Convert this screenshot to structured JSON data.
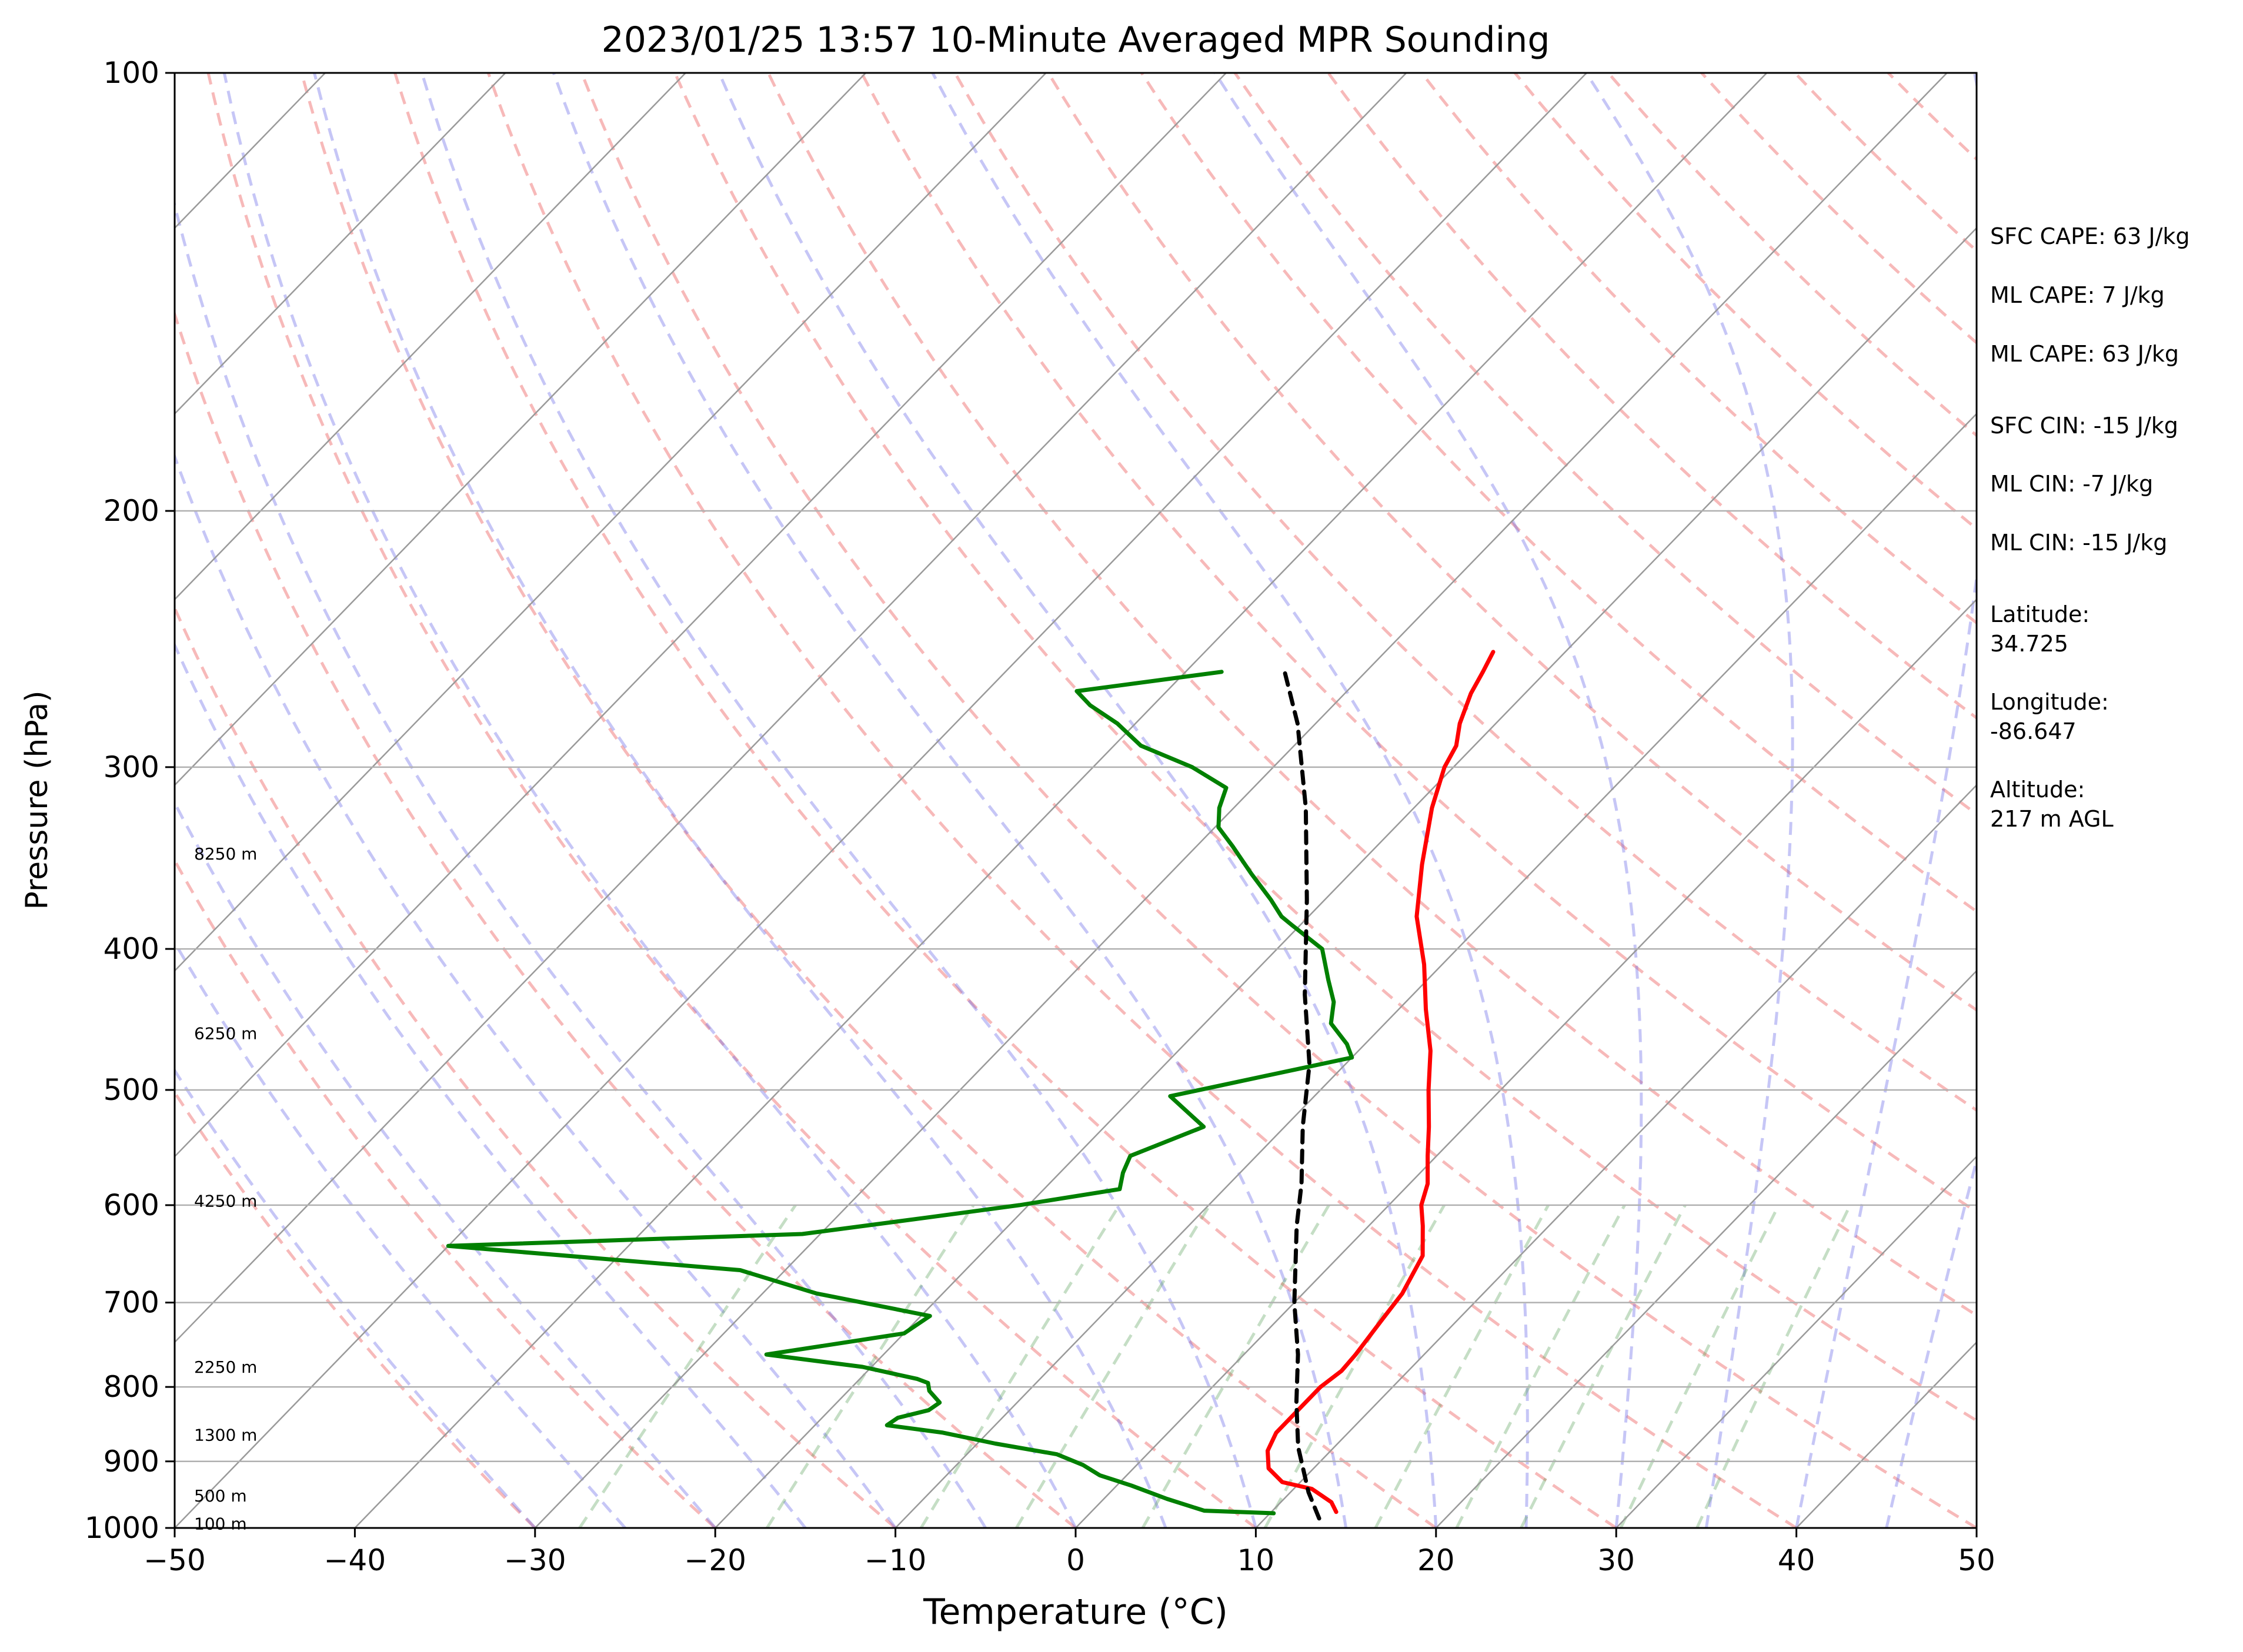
{
  "chart_data": {
    "type": "line",
    "title": "2023/01/25 13:57 10-Minute Averaged MPR Sounding",
    "xlabel": "Temperature (°C)",
    "ylabel": "Pressure (hPa)",
    "xlim": [
      -50,
      50
    ],
    "ylim": [
      1000,
      100
    ],
    "y_scale": "log",
    "skew_t": true,
    "x_ticks": [
      -50,
      -40,
      -30,
      -20,
      -10,
      0,
      10,
      20,
      30,
      40,
      50
    ],
    "x_tick_labels": [
      "−50",
      "−40",
      "−30",
      "−20",
      "−10",
      "0",
      "10",
      "20",
      "30",
      "40",
      "50"
    ],
    "y_ticks": [
      1000,
      900,
      800,
      700,
      600,
      500,
      400,
      300,
      200,
      100
    ],
    "y_tick_labels": [
      "1000",
      "900",
      "800",
      "700",
      "600",
      "500",
      "400",
      "300",
      "200",
      "100"
    ],
    "grid": true,
    "series": [
      {
        "color": "#ff0000",
        "points": [
          [
            13.6,
            975
          ],
          [
            12.8,
            960
          ],
          [
            11.0,
            940
          ],
          [
            9.0,
            930
          ],
          [
            7.5,
            910
          ],
          [
            6.5,
            885
          ],
          [
            6.0,
            860
          ],
          [
            6.0,
            830
          ],
          [
            6.0,
            800
          ],
          [
            6.3,
            780
          ],
          [
            6.2,
            760
          ],
          [
            5.8,
            720
          ],
          [
            5.5,
            690
          ],
          [
            4.6,
            650
          ],
          [
            3.0,
            620
          ],
          [
            1.8,
            600
          ],
          [
            1.0,
            580
          ],
          [
            -0.5,
            555
          ],
          [
            -2.0,
            530
          ],
          [
            -4.0,
            500
          ],
          [
            -6.0,
            470
          ],
          [
            -8.5,
            440
          ],
          [
            -11.0,
            410
          ],
          [
            -14.0,
            380
          ],
          [
            -16.5,
            350
          ],
          [
            -19.0,
            320
          ],
          [
            -20.5,
            300
          ],
          [
            -21.0,
            290
          ],
          [
            -22.0,
            280
          ],
          [
            -23.0,
            267
          ],
          [
            -23.5,
            258
          ],
          [
            -24.0,
            250
          ]
        ],
        "style": "solid"
      },
      {
        "color": "#008000",
        "points": [
          [
            10.2,
            977
          ],
          [
            6.2,
            973
          ],
          [
            3.5,
            955
          ],
          [
            0.8,
            935
          ],
          [
            -1.5,
            920
          ],
          [
            -3.0,
            905
          ],
          [
            -5.0,
            890
          ],
          [
            -9.0,
            875
          ],
          [
            -12.5,
            860
          ],
          [
            -16.0,
            850
          ],
          [
            -15.8,
            840
          ],
          [
            -14.5,
            830
          ],
          [
            -14.3,
            820
          ],
          [
            -15.5,
            805
          ],
          [
            -16.0,
            795
          ],
          [
            -16.8,
            790
          ],
          [
            -20.5,
            775
          ],
          [
            -26.5,
            760
          ],
          [
            -20.0,
            735
          ],
          [
            -19.5,
            715
          ],
          [
            -27.0,
            690
          ],
          [
            -32.5,
            665
          ],
          [
            -50.0,
            640
          ],
          [
            -31.0,
            628
          ],
          [
            -25.0,
            612
          ],
          [
            -20.5,
            600
          ],
          [
            -15.8,
            585
          ],
          [
            -16.5,
            570
          ],
          [
            -17.0,
            555
          ],
          [
            -14.5,
            530
          ],
          [
            -18.0,
            505
          ],
          [
            -10.0,
            475
          ],
          [
            -11.0,
            465
          ],
          [
            -13.0,
            450
          ],
          [
            -14.0,
            435
          ],
          [
            -15.5,
            420
          ],
          [
            -17.5,
            400
          ],
          [
            -20.5,
            385
          ],
          [
            -21.5,
            380
          ],
          [
            -23.0,
            370
          ],
          [
            -25.5,
            355
          ],
          [
            -28.0,
            340
          ],
          [
            -29.8,
            330
          ],
          [
            -30.8,
            320
          ],
          [
            -31.5,
            310
          ],
          [
            -34.5,
            300
          ],
          [
            -38.5,
            290
          ],
          [
            -41.0,
            280
          ],
          [
            -43.5,
            272
          ],
          [
            -45.0,
            266
          ],
          [
            -38.0,
            258
          ]
        ],
        "style": "solid"
      },
      {
        "color": "#000000",
        "points": [
          [
            13.0,
            985
          ],
          [
            11.0,
            945
          ],
          [
            8.0,
            880
          ],
          [
            5.5,
            820
          ],
          [
            3.0,
            760
          ],
          [
            0.0,
            700
          ],
          [
            -4.0,
            620
          ],
          [
            -6.0,
            580
          ],
          [
            -9.0,
            530
          ],
          [
            -12.0,
            480
          ],
          [
            -16.0,
            430
          ],
          [
            -21.0,
            370
          ],
          [
            -26.0,
            320
          ],
          [
            -31.0,
            280
          ],
          [
            -34.5,
            258
          ]
        ],
        "style": "dashed"
      }
    ],
    "height_labels": [
      {
        "text": "100 m",
        "p": 993
      },
      {
        "text": "500 m",
        "p": 950
      },
      {
        "text": "1300 m",
        "p": 863
      },
      {
        "text": "2250 m",
        "p": 775
      },
      {
        "text": "4250 m",
        "p": 596
      },
      {
        "text": "6250 m",
        "p": 457
      },
      {
        "text": "8250 m",
        "p": 344
      }
    ],
    "reference_lines": {
      "isotherm_color": "#9a9a9a",
      "dry_adiabat_color": "#f08080",
      "moist_adiabat_color": "#6a6ae8",
      "mixing_ratio_color": "#5aa05a"
    }
  },
  "info_panel": {
    "sfc_cape": "SFC CAPE: 63 J/kg",
    "ml_cape_1": "ML CAPE: 7 J/kg",
    "ml_cape_2": "ML CAPE: 63 J/kg",
    "sfc_cin": "SFC CIN: -15 J/kg",
    "ml_cin_1": "ML CIN: -7 J/kg",
    "ml_cin_2": "ML CIN: -15 J/kg",
    "latitude_label": "Latitude:",
    "latitude_value": "34.725",
    "longitude_label": "Longitude:",
    "longitude_value": "-86.647",
    "altitude_label": "Altitude:",
    "altitude_value": "217 m AGL"
  }
}
